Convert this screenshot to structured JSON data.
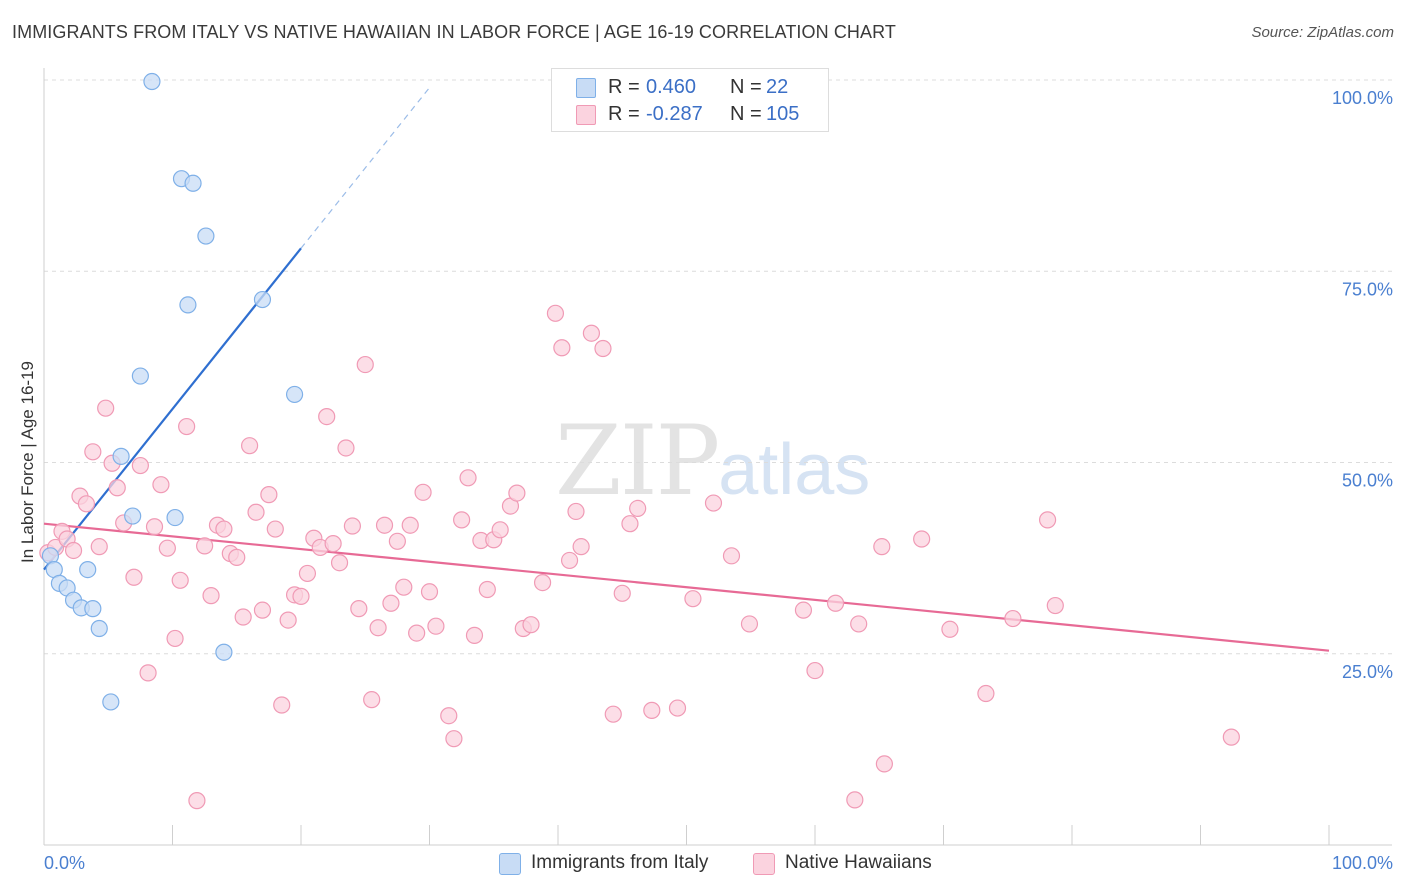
{
  "title": "IMMIGRANTS FROM ITALY VS NATIVE HAWAIIAN IN LABOR FORCE | AGE 16-19 CORRELATION CHART",
  "source": "Source: ZipAtlas.com",
  "watermark": {
    "zip": "ZIP",
    "atlas": "atlas"
  },
  "legend": {
    "rows": [
      {
        "r_label": "R =",
        "r_value": "0.460",
        "n_label": "N =",
        "n_value": "22",
        "color": "#a8c8f0"
      },
      {
        "r_label": "R =",
        "r_value": "-0.287",
        "n_label": "N =",
        "n_value": "105",
        "color": "#f7b8cb"
      }
    ]
  },
  "bottom_legend": [
    {
      "label": "Immigrants from Italy",
      "color": "#a8c8f0"
    },
    {
      "label": "Native Hawaiians",
      "color": "#f7b8cb"
    }
  ],
  "chart_data": {
    "type": "scatter",
    "title": "IMMIGRANTS FROM ITALY VS NATIVE HAWAIIAN IN LABOR FORCE | AGE 16-19 CORRELATION CHART",
    "xlabel": "",
    "ylabel": "In Labor Force | Age 16-19",
    "xlim": [
      0,
      100
    ],
    "ylim": [
      0,
      100
    ],
    "x_tick_labels": [
      "0.0%",
      "100.0%"
    ],
    "y_tick_labels": [
      "25.0%",
      "50.0%",
      "75.0%",
      "100.0%"
    ],
    "y_ticks": [
      25,
      50,
      75,
      100
    ],
    "series": [
      {
        "name": "Immigrants from Italy",
        "color": "#7fb0e8",
        "fill": "#c8dcf5",
        "points": [
          [
            0.5,
            37.8
          ],
          [
            0.8,
            36.0
          ],
          [
            1.2,
            34.2
          ],
          [
            1.8,
            33.6
          ],
          [
            2.3,
            32.0
          ],
          [
            2.9,
            31.0
          ],
          [
            3.4,
            36.0
          ],
          [
            3.8,
            30.9
          ],
          [
            4.3,
            28.3
          ],
          [
            5.2,
            18.7
          ],
          [
            6.0,
            50.8
          ],
          [
            6.9,
            43.0
          ],
          [
            7.5,
            61.3
          ],
          [
            8.4,
            99.8
          ],
          [
            10.2,
            42.8
          ],
          [
            10.7,
            87.1
          ],
          [
            11.2,
            70.6
          ],
          [
            11.6,
            86.5
          ],
          [
            12.6,
            79.6
          ],
          [
            14.0,
            25.2
          ],
          [
            17.0,
            71.3
          ],
          [
            19.5,
            58.9
          ]
        ],
        "trend": {
          "x0": 0.0,
          "y0": 36.0,
          "x1": 20.0,
          "y1": 78.0,
          "dash_to_x": 30.0,
          "dash_to_y": 99.0,
          "color": "#2f6fd0"
        }
      },
      {
        "name": "Native Hawaiians",
        "color": "#f09ab5",
        "fill": "#fbd3df",
        "points": [
          [
            0.3,
            38.2
          ],
          [
            0.9,
            38.9
          ],
          [
            1.4,
            41.0
          ],
          [
            1.8,
            40.0
          ],
          [
            2.3,
            38.5
          ],
          [
            2.8,
            45.6
          ],
          [
            3.3,
            44.6
          ],
          [
            3.8,
            51.4
          ],
          [
            4.3,
            39.0
          ],
          [
            4.8,
            57.1
          ],
          [
            5.3,
            49.9
          ],
          [
            5.7,
            46.7
          ],
          [
            6.2,
            42.1
          ],
          [
            7.0,
            35.0
          ],
          [
            7.5,
            49.6
          ],
          [
            8.1,
            22.5
          ],
          [
            8.6,
            41.6
          ],
          [
            9.1,
            47.1
          ],
          [
            9.6,
            38.8
          ],
          [
            10.2,
            27.0
          ],
          [
            10.6,
            34.6
          ],
          [
            11.1,
            54.7
          ],
          [
            11.9,
            5.8
          ],
          [
            12.5,
            39.1
          ],
          [
            13.0,
            32.6
          ],
          [
            13.5,
            41.8
          ],
          [
            14.0,
            41.3
          ],
          [
            14.5,
            38.1
          ],
          [
            15.0,
            37.6
          ],
          [
            15.5,
            29.8
          ],
          [
            16.0,
            52.2
          ],
          [
            16.5,
            43.5
          ],
          [
            17.0,
            30.7
          ],
          [
            17.5,
            45.8
          ],
          [
            18.0,
            41.3
          ],
          [
            18.5,
            18.3
          ],
          [
            19.0,
            29.4
          ],
          [
            19.5,
            32.7
          ],
          [
            20.0,
            32.5
          ],
          [
            20.5,
            35.5
          ],
          [
            21.0,
            40.1
          ],
          [
            21.5,
            38.9
          ],
          [
            22.0,
            56.0
          ],
          [
            22.5,
            39.4
          ],
          [
            23.0,
            36.9
          ],
          [
            23.5,
            51.9
          ],
          [
            24.0,
            41.7
          ],
          [
            24.5,
            30.9
          ],
          [
            25.0,
            62.8
          ],
          [
            25.5,
            19.0
          ],
          [
            26.0,
            28.4
          ],
          [
            26.5,
            41.8
          ],
          [
            27.0,
            31.6
          ],
          [
            27.5,
            39.7
          ],
          [
            28.0,
            33.7
          ],
          [
            28.5,
            41.8
          ],
          [
            29.0,
            27.7
          ],
          [
            29.5,
            46.1
          ],
          [
            30.0,
            33.1
          ],
          [
            30.5,
            28.6
          ],
          [
            31.5,
            16.9
          ],
          [
            31.9,
            13.9
          ],
          [
            32.5,
            42.5
          ],
          [
            33.0,
            48.0
          ],
          [
            33.5,
            27.4
          ],
          [
            34.0,
            39.8
          ],
          [
            34.5,
            33.4
          ],
          [
            35.0,
            39.9
          ],
          [
            35.5,
            41.2
          ],
          [
            36.3,
            44.3
          ],
          [
            36.8,
            46.0
          ],
          [
            37.3,
            28.3
          ],
          [
            37.9,
            28.8
          ],
          [
            38.8,
            34.3
          ],
          [
            39.8,
            69.5
          ],
          [
            40.3,
            65.0
          ],
          [
            40.9,
            37.2
          ],
          [
            41.4,
            43.6
          ],
          [
            41.8,
            39.0
          ],
          [
            42.6,
            66.9
          ],
          [
            43.5,
            64.9
          ],
          [
            44.3,
            17.1
          ],
          [
            45.0,
            32.9
          ],
          [
            45.6,
            42.0
          ],
          [
            46.2,
            44.0
          ],
          [
            47.3,
            17.6
          ],
          [
            49.3,
            17.9
          ],
          [
            50.5,
            32.2
          ],
          [
            52.1,
            44.7
          ],
          [
            53.5,
            37.8
          ],
          [
            54.9,
            28.9
          ],
          [
            59.1,
            30.7
          ],
          [
            60.0,
            22.8
          ],
          [
            61.6,
            31.6
          ],
          [
            63.1,
            5.9
          ],
          [
            63.4,
            28.9
          ],
          [
            65.2,
            39.0
          ],
          [
            65.4,
            10.6
          ],
          [
            68.3,
            40.0
          ],
          [
            70.5,
            28.2
          ],
          [
            73.3,
            19.8
          ],
          [
            75.4,
            29.6
          ],
          [
            78.1,
            42.5
          ],
          [
            78.7,
            31.3
          ],
          [
            92.4,
            14.1
          ]
        ],
        "trend": {
          "x0": 0.0,
          "y0": 42.0,
          "x1": 100.0,
          "y1": 25.4,
          "color": "#e76a95"
        }
      }
    ],
    "grid": true,
    "legend_position": "top-center"
  }
}
